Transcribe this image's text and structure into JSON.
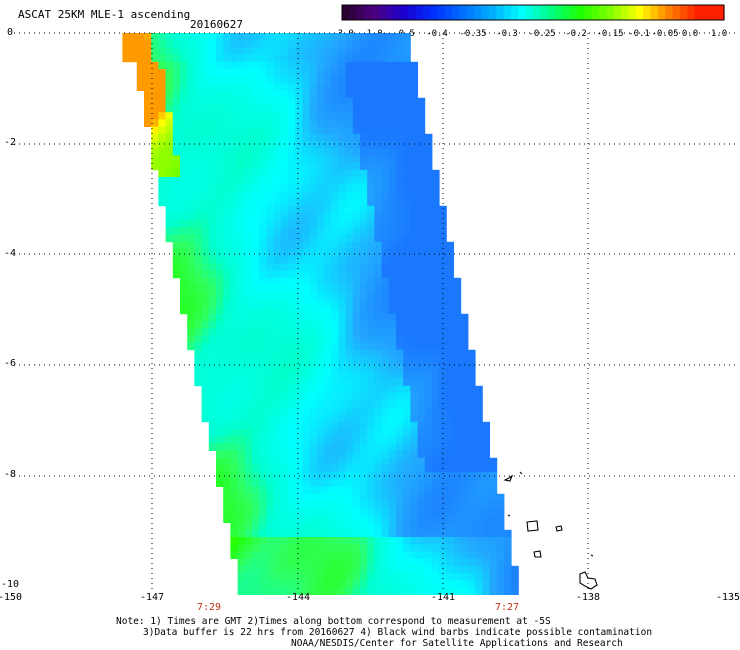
{
  "header": {
    "title": "ASCAT 25KM MLE-1 ascending",
    "date": "20160627"
  },
  "colorbar": {
    "labels": [
      "-3.0",
      "-1.0",
      "-0.5",
      "-0.4",
      "-0.35",
      "-0.3",
      "-0.25",
      "-0.2",
      "-0.15",
      "-0.1",
      "-0.05",
      "0.0",
      "1.0"
    ],
    "colors": [
      "#2a0030",
      "#4b0082",
      "#1a00d0",
      "#0030ff",
      "#0070ff",
      "#00b0ff",
      "#00ffff",
      "#00ff80",
      "#20ff00",
      "#80ff00",
      "#ffff00",
      "#ff8000",
      "#ff2000"
    ]
  },
  "axes": {
    "y_labels": [
      "0",
      "-2",
      "-4",
      "-6",
      "-8",
      "-10"
    ],
    "x_labels": [
      "-150",
      "-147",
      "-144",
      "-141",
      "-138",
      "-135"
    ],
    "time_labels": [
      "7:29",
      "7:27"
    ]
  },
  "notes": {
    "line1": "Note: 1) Times are GMT 2)Times along bottom correspond to measurement at -5S",
    "line2": "3)Data buffer is 22 hrs from 20160627 4) Black wind barbs indicate possible contamination",
    "line3": "NOAA/NESDIS/Center for Satellite Applications and Research"
  },
  "map": {
    "lon_range": [
      -150,
      -135
    ],
    "lat_range": [
      -10,
      0
    ],
    "swath": "ASCAT ascending pass, MLE-1 values",
    "islands": "Marquesas Islands"
  }
}
